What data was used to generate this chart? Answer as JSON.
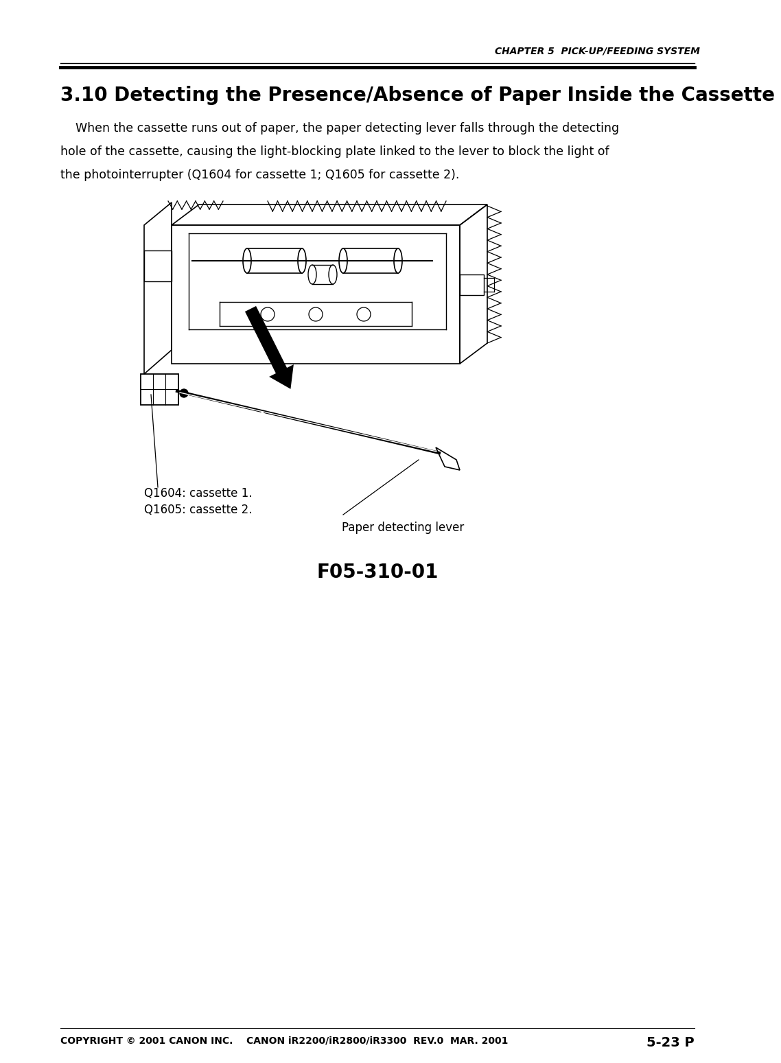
{
  "bg_color": "#ffffff",
  "page_width": 10.8,
  "page_height": 15.29,
  "header_text": "CHAPTER 5  PICK-UP/FEEDING SYSTEM",
  "title_text": "3.10 Detecting the Presence/Absence of Paper Inside the Cassette",
  "body_line1": "    When the cassette runs out of paper, the paper detecting lever falls through the detecting",
  "body_line2": "hole of the cassette, causing the light-blocking plate linked to the lever to block the light of",
  "body_line3": "the photointerrupter (Q1604 for cassette 1; Q1605 for cassette 2).",
  "figure_caption": "F05-310-01",
  "label_q1604": "Q1604: cassette 1.",
  "label_q1605": "Q1605: cassette 2.",
  "label_lever": "Paper detecting lever",
  "footer_left": "COPYRIGHT © 2001 CANON INC.",
  "footer_center": "CANON iR2200/iR2800/iR3300  REV.0  MAR. 2001",
  "footer_right": "5-23 P"
}
